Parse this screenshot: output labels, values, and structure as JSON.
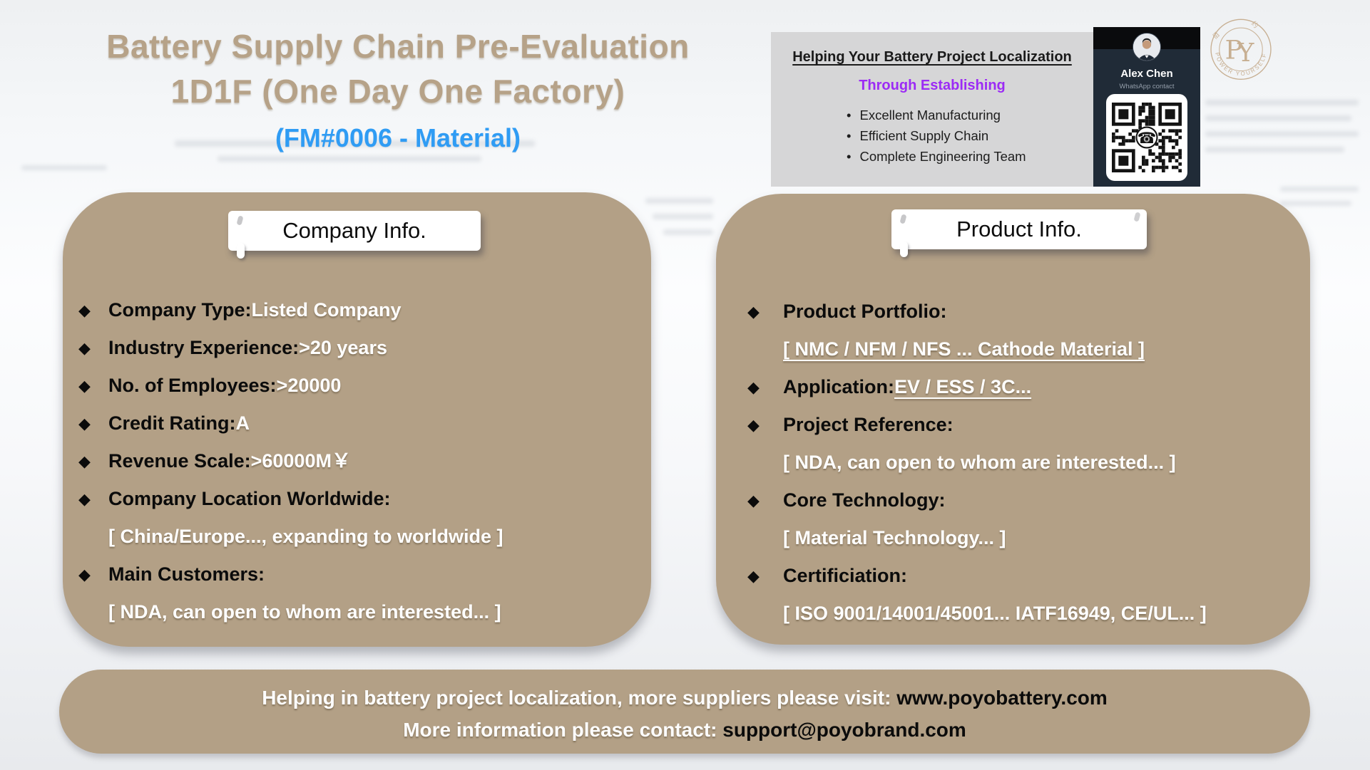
{
  "header": {
    "title_line1": "Battery Supply Chain Pre-Evaluation",
    "title_line2": "1D1F (One Day One Factory)",
    "subtitle": "(FM#0006 - Material)"
  },
  "promo": {
    "heading": "Helping Your Battery Project Localization",
    "subheading": "Through Establishing",
    "bullets": [
      {
        "text": "Excellent Manufacturing"
      },
      {
        "text": "Efficient Supply Chain"
      },
      {
        "text": "Complete Engineering Team"
      }
    ]
  },
  "contact_card": {
    "name": "Alex Chen",
    "subtitle": "WhatsApp contact",
    "qr_center_icon": "whatsapp-phone-icon"
  },
  "logo": {
    "monogram": "PY",
    "top_text": "佰 约",
    "tagline": "POWER YOURSELF"
  },
  "company_card": {
    "title": "Company Info.",
    "rows": [
      {
        "label": "Company Type:",
        "value": "Listed Company"
      },
      {
        "label": "Industry Experience:",
        "value": ">20 years"
      },
      {
        "label": "No. of Employees:",
        "value": ">20000"
      },
      {
        "label": "Credit Rating:",
        "value": "A"
      },
      {
        "label": "Revenue Scale:",
        "value": ">60000M￥"
      },
      {
        "label": "Company Location Worldwide:",
        "value": ""
      },
      {
        "label": "",
        "value": "[ China/Europe..., expanding to worldwide ]"
      },
      {
        "label": "Main Customers:",
        "value": ""
      },
      {
        "label": "",
        "value": "[ NDA, can open to whom are interested... ]"
      }
    ]
  },
  "product_card": {
    "title": "Product Info.",
    "rows": [
      {
        "label": "Product Portfolio:",
        "value": ""
      },
      {
        "label": "",
        "value": "[ NMC / NFM / NFS ... Cathode Material ]",
        "underline": true
      },
      {
        "label": "Application:",
        "value": "EV / ESS / 3C...",
        "underline": true
      },
      {
        "label": "Project Reference:",
        "value": ""
      },
      {
        "label": "",
        "value": "[ NDA, can open to whom are interested...  ]"
      },
      {
        "label": "Core Technology:",
        "value": ""
      },
      {
        "label": "",
        "value": "[ Material Technology... ]"
      },
      {
        "label": "Certificiation:",
        "value": ""
      },
      {
        "label": "",
        "value": "[ ISO 9001/14001/45001... IATF16949, CE/UL... ]"
      }
    ]
  },
  "footer": {
    "line1_text": "Helping in battery project localization, more suppliers please visit:",
    "line1_link": "www.poyobattery.com",
    "line2_text": "More information please contact:",
    "line2_link": "support@poyobrand.com"
  },
  "colors": {
    "tan": "#b3a086",
    "title_tan": "#b6a288",
    "accent_blue": "#2f9cf4",
    "accent_purple": "#9c2bf5",
    "gray_box": "#d6d6d7",
    "dark_card": "#202b37",
    "value_white": "#ffffff",
    "label_black": "#0b0b0b"
  }
}
